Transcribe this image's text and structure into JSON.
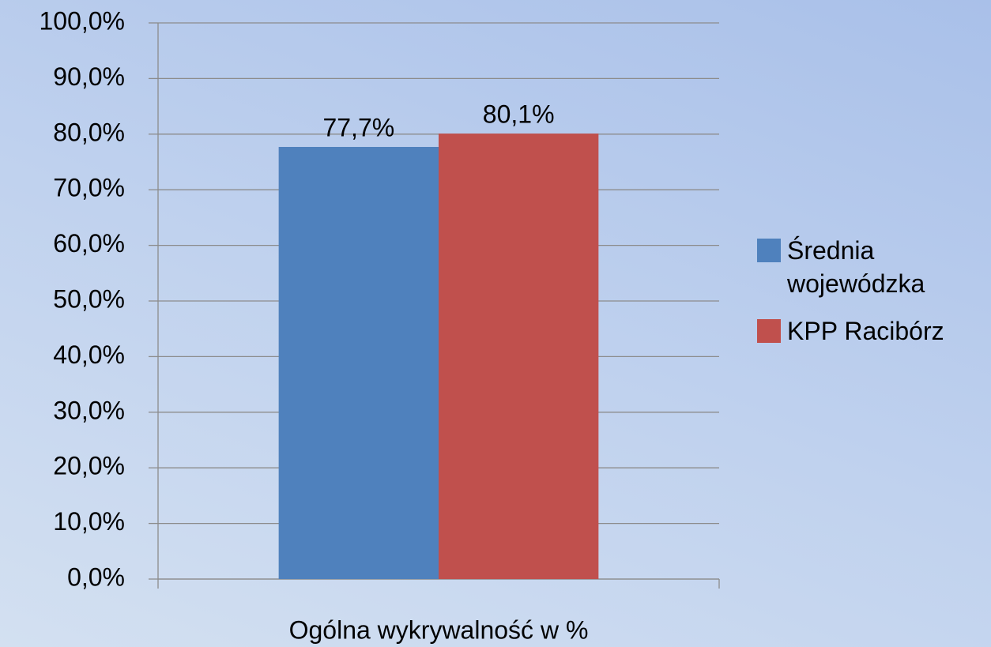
{
  "chart_data": {
    "type": "bar",
    "categories": [
      "Ogólna wykrywalność w %"
    ],
    "series": [
      {
        "name": "Średnia wojewódzka",
        "color": "#4f81bd",
        "values": [
          77.7
        ],
        "value_labels": [
          "77,7%"
        ]
      },
      {
        "name": "KPP Racibórz",
        "color": "#c0504d",
        "values": [
          80.1
        ],
        "value_labels": [
          "80,1%"
        ]
      }
    ],
    "ylim": [
      0,
      100
    ],
    "yticks": [
      {
        "value": 0,
        "label": "0,0%"
      },
      {
        "value": 10,
        "label": "10,0%"
      },
      {
        "value": 20,
        "label": "20,0%"
      },
      {
        "value": 30,
        "label": "30,0%"
      },
      {
        "value": 40,
        "label": "40,0%"
      },
      {
        "value": 50,
        "label": "50,0%"
      },
      {
        "value": 60,
        "label": "60,0%"
      },
      {
        "value": 70,
        "label": "70,0%"
      },
      {
        "value": 80,
        "label": "80,0%"
      },
      {
        "value": 90,
        "label": "90,0%"
      },
      {
        "value": 100,
        "label": "100,0%"
      }
    ],
    "grid": true,
    "legend": "right"
  }
}
